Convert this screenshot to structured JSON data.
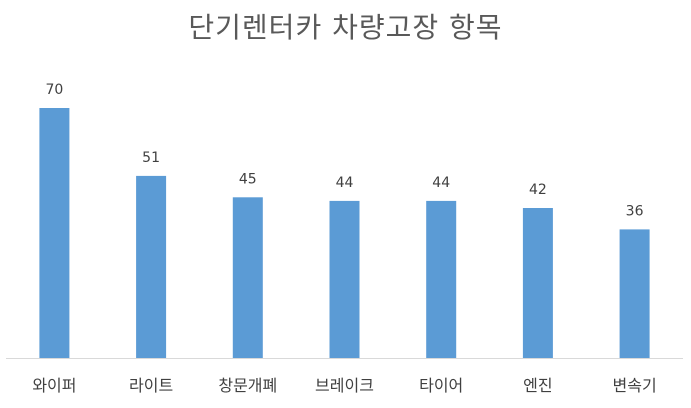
{
  "chart_data": {
    "type": "bar",
    "title": "단기렌터카 차량고장 항목",
    "categories": [
      "와이퍼",
      "라이트",
      "창문개폐",
      "브레이크",
      "타이어",
      "엔진",
      "변속기"
    ],
    "values": [
      70,
      51,
      45,
      44,
      44,
      42,
      36
    ],
    "ylim": [
      0,
      70
    ],
    "grid": false,
    "legend": "none",
    "data_labels": true,
    "bar_color": "#5b9bd5",
    "axis_color": "#d9d9d9"
  }
}
